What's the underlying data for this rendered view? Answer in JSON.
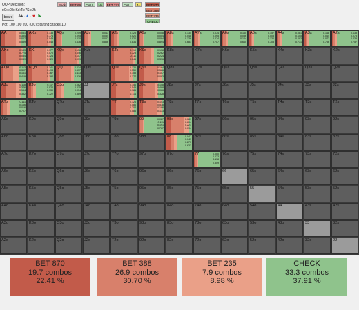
{
  "header": {
    "decision": "OOP Decision:",
    "board": "r:0:c:0:b:Kd:Ts:7Sc:Jh",
    "board_button": "board",
    "suits": [
      "J♣",
      "J♦",
      "J♥",
      "J♠"
    ],
    "pot": "Pot: 100 100 200 (0/0) Starting Stacks:10"
  },
  "toolbar": {
    "buttons": [
      "Back",
      "BET 69",
      "CALL",
      "H+",
      "BET 121",
      "CALL",
      "J+",
      "BET 870",
      "BET 388",
      "BET 235",
      "CHECK"
    ]
  },
  "colors": {
    "bet870": "#c25b4a",
    "bet388": "#d8806b",
    "bet235": "#eaa088",
    "check": "#8fc38c",
    "cell": "#5e5e5e",
    "diag": "#9b9b9b"
  },
  "grid": {
    "rows": [
      [
        "AA",
        "AKs",
        "AQs",
        "AJs",
        "ATs",
        "A9s",
        "A8s",
        "A7s",
        "A6s",
        "A5s",
        "A4s",
        "A3s",
        "A2s"
      ],
      [
        "AKo",
        "KK",
        "KQs",
        "KJs",
        "KTs",
        "K9s",
        "K8s",
        "K7s",
        "K6s",
        "K5s",
        "K4s",
        "K3s",
        "K2s"
      ],
      [
        "AQo",
        "KQo",
        "QQ",
        "QJs",
        "QTs",
        "Q9s",
        "Q8s",
        "Q7s",
        "Q6s",
        "Q5s",
        "Q4s",
        "Q3s",
        "Q2s"
      ],
      [
        "AJo",
        "KJo",
        "QJo",
        "JJ",
        "JTs",
        "J9s",
        "J8s",
        "J7s",
        "J6s",
        "J5s",
        "J4s",
        "J3s",
        "J2s"
      ],
      [
        "ATo",
        "KTo",
        "QTo",
        "JTo",
        "TT",
        "T9s",
        "T8s",
        "T7s",
        "T6s",
        "T5s",
        "T4s",
        "T3s",
        "T2s"
      ],
      [
        "A9o",
        "K9o",
        "Q9o",
        "J9o",
        "T9o",
        "99",
        "98s",
        "97s",
        "96s",
        "95s",
        "94s",
        "93s",
        "92s"
      ],
      [
        "A8o",
        "K8o",
        "Q8o",
        "J8o",
        "T8o",
        "98o",
        "88",
        "87s",
        "86s",
        "85s",
        "84s",
        "83s",
        "82s"
      ],
      [
        "A7o",
        "K7o",
        "Q7o",
        "J7o",
        "T7o",
        "97o",
        "87o",
        "77",
        "76s",
        "75s",
        "74s",
        "73s",
        "72s"
      ],
      [
        "A6o",
        "K6o",
        "Q6o",
        "J6o",
        "T6o",
        "96o",
        "86o",
        "76o",
        "66",
        "65s",
        "64s",
        "63s",
        "62s"
      ],
      [
        "A5o",
        "K5o",
        "Q5o",
        "J5o",
        "T5o",
        "95o",
        "85o",
        "75o",
        "65o",
        "55",
        "54s",
        "53s",
        "52s"
      ],
      [
        "A4o",
        "K4o",
        "Q4o",
        "J4o",
        "T4o",
        "94o",
        "84o",
        "74o",
        "64o",
        "54o",
        "44",
        "43s",
        "42s"
      ],
      [
        "A3o",
        "K3o",
        "Q3o",
        "J3o",
        "T3o",
        "93o",
        "83o",
        "73o",
        "63o",
        "53o",
        "43o",
        "33",
        "32s"
      ],
      [
        "A2o",
        "K2o",
        "Q2o",
        "J2o",
        "T2o",
        "92o",
        "82o",
        "72o",
        "62o",
        "52o",
        "42o",
        "32o",
        "22"
      ]
    ],
    "strategies": {
      "AA": {
        "f": [
          0.15,
          0.45,
          0.2,
          0.2
        ],
        "n": [
          "0.051",
          "0.354",
          "0.007",
          "0.589"
        ]
      },
      "AKs": {
        "f": [
          0.1,
          0.65,
          0.15,
          0.1
        ],
        "n": [
          "0.133",
          "0.774",
          "0.049",
          "0.043"
        ]
      },
      "AQs": {
        "f": [
          0.05,
          0.15,
          0.05,
          0.75
        ],
        "n": [
          "0.259",
          "0.095",
          "0.010",
          "0.636"
        ]
      },
      "AJs": {
        "f": [
          0.05,
          0.15,
          0.1,
          0.7
        ],
        "n": [
          "0.043",
          "0.034",
          "0.067",
          "0.856"
        ]
      },
      "ATs": {
        "f": [
          0.1,
          0.15,
          0.05,
          0.7
        ],
        "n": [
          "0.125",
          "0.021",
          "0.020",
          "0.834"
        ]
      },
      "A9s": {
        "f": [
          0.05,
          0.1,
          0.05,
          0.8
        ],
        "n": [
          "0.008",
          "0.004",
          "0.094",
          "0.894"
        ]
      },
      "A8s": {
        "f": [
          0.05,
          0.1,
          0.1,
          0.75
        ],
        "n": [
          "0.135",
          "0.048",
          "0.136",
          "0.681"
        ]
      },
      "A7s": {
        "f": [
          0.05,
          0.1,
          0.1,
          0.75
        ],
        "n": [
          "0.074",
          "0.095",
          "0.074",
          "0.757"
        ]
      },
      "A6s": {
        "f": [
          0.05,
          0.1,
          0.1,
          0.75
        ],
        "n": [
          "0.160",
          "0.056",
          "0.124",
          "0.660"
        ]
      },
      "A5s": {
        "f": [
          0.05,
          0.05,
          0.1,
          0.8
        ],
        "n": [
          "0.157",
          "0.005",
          "0.130",
          "0.708"
        ]
      },
      "A4s": {
        "f": [
          0.05,
          0.05,
          0.1,
          0.8
        ],
        "n": [
          "0.081",
          "0.105",
          "0.083",
          "0.731"
        ]
      },
      "A3s": {
        "f": [
          0.05,
          0.05,
          0.1,
          0.8
        ],
        "n": [
          "0.148",
          "0.044",
          "0.072",
          "0.736"
        ]
      },
      "A2s": {
        "f": [
          0.05,
          0.05,
          0.1,
          0.8
        ],
        "n": [
          "0.135",
          "0.073",
          "0.035",
          "0.757"
        ]
      },
      "AKo": {
        "f": [
          0.2,
          0.6,
          0.1,
          0.1
        ],
        "n": [
          "0.133",
          "0.774",
          "0.054",
          "0.039"
        ]
      },
      "KK": {
        "f": [
          0.15,
          0.55,
          0.15,
          0.15
        ],
        "n": [
          "0.177",
          "0.570",
          "0.124",
          "0.129"
        ]
      },
      "KQs": {
        "f": [
          0.2,
          0.6,
          0.1,
          0.1
        ],
        "n": [
          "0.158",
          "0.646",
          "0.157",
          "0.039"
        ]
      },
      "KTs": {
        "f": [
          0.1,
          0.75,
          0.1,
          0.05
        ],
        "n": [
          "0.119",
          "0.725",
          "0.111",
          "0.045"
        ]
      },
      "K9s": {
        "f": [
          0.2,
          0.25,
          0.15,
          0.4
        ],
        "n": [
          "0.138",
          "0.262",
          "0.224",
          "0.376"
        ]
      },
      "AQo": {
        "f": [
          0.1,
          0.4,
          0.2,
          0.3
        ],
        "n": [
          "0.113",
          "0.307",
          "0.161",
          "0.419"
        ]
      },
      "KQo": {
        "f": [
          0.15,
          0.6,
          0.1,
          0.15
        ],
        "n": [
          "0.141",
          "0.498",
          "0.167",
          "0.194"
        ]
      },
      "QQ": {
        "f": [
          0.1,
          0.5,
          0.1,
          0.3
        ],
        "n": [
          "0.014",
          "0.537",
          "0.113",
          "0.336"
        ]
      },
      "QTs": {
        "f": [
          0.15,
          0.55,
          0.15,
          0.15
        ],
        "n": [
          "0.120",
          "0.550",
          "0.153",
          "0.177"
        ]
      },
      "Q9s": {
        "f": [
          0.2,
          0.55,
          0.15,
          0.1
        ],
        "n": [
          "0.164",
          "0.586",
          "0.157",
          "0.093"
        ]
      },
      "AJo": {
        "f": [
          0.2,
          0.4,
          0.2,
          0.2
        ],
        "n": [
          "0.118",
          "0.376",
          "0.154",
          "0.352"
        ]
      },
      "KJo": {
        "f": [
          0.1,
          0.1,
          0.1,
          0.7
        ],
        "n": [
          "0.117",
          "0.022",
          "0.139",
          "0.722"
        ]
      },
      "QJo": {
        "f": [
          0.05,
          0.15,
          0.1,
          0.7
        ],
        "n": [
          "0.062",
          "0.015",
          "0.034",
          "0.889"
        ]
      },
      "JTs": {
        "f": [
          0.2,
          0.55,
          0.15,
          0.1
        ],
        "n": [
          "0.156",
          "0.545",
          "0.185",
          "0.114"
        ]
      },
      "J9s": {
        "f": [
          0.15,
          0.5,
          0.1,
          0.25
        ],
        "n": [
          "0.108",
          "0.498",
          "0.066",
          "0.328"
        ]
      },
      "ATo": {
        "f": [
          0.1,
          0.15,
          0.1,
          0.65
        ],
        "n": [
          "0.111",
          "0.166",
          "0.016",
          "0.707"
        ]
      },
      "TT": {
        "f": [
          0.2,
          0.55,
          0.15,
          0.1
        ],
        "n": [
          "0.126",
          "0.586",
          "0.202",
          "0.086"
        ]
      },
      "T9s": {
        "f": [
          0.15,
          0.55,
          0.2,
          0.1
        ],
        "n": [
          "0.143",
          "0.538",
          "0.186",
          "0.133"
        ]
      },
      "99": {
        "f": [
          0.05,
          0.1,
          0.05,
          0.8
        ],
        "n": [
          "0.027",
          "0.111",
          "0.191",
          "0.767"
        ]
      },
      "98s": {
        "f": [
          0.2,
          0.5,
          0.2,
          0.1
        ],
        "n": [
          "0.081",
          "0.604",
          "0.221",
          "0.094"
        ]
      },
      "88": {
        "f": [
          0.2,
          0.1,
          0.1,
          0.6
        ],
        "n": [
          "0.047",
          "0.047",
          "0.273",
          "0.633"
        ]
      },
      "77": {
        "f": [
          0.05,
          0.05,
          0.05,
          0.85
        ],
        "n": [
          "0.000",
          "0.023",
          "0.118",
          "0.859"
        ]
      }
    }
  },
  "summary": [
    {
      "label": "BET 870",
      "combos": "19.7 combos",
      "pct": "22.41 %",
      "color": "#c25b4a"
    },
    {
      "label": "BET 388",
      "combos": "26.9 combos",
      "pct": "30.70 %",
      "color": "#d8806b"
    },
    {
      "label": "BET 235",
      "combos": "7.9 combos",
      "pct": "8.98 %",
      "color": "#eaa088"
    },
    {
      "label": "CHECK",
      "combos": "33.3 combos",
      "pct": "37.91 %",
      "color": "#8fc38c"
    }
  ]
}
